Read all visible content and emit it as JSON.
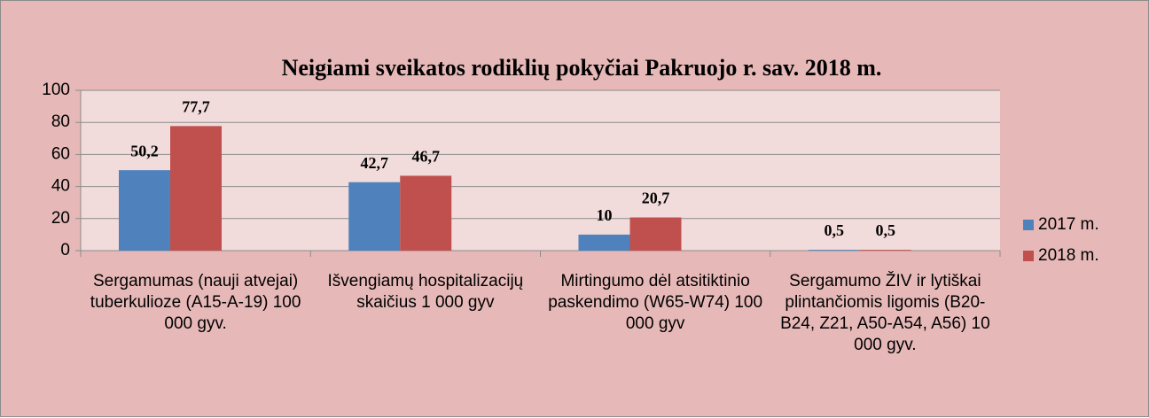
{
  "chart_data": {
    "type": "bar",
    "title": "Neigiami sveikatos rodiklių pokyčiai Pakruojo r. sav. 2018 m.",
    "categories": [
      "Sergamumas (nauji atvejai) tuberkulioze (A15-A-19) 100 000 gyv.",
      "Išvengiamų hospitalizacijų skaičius 1 000 gyv",
      "Mirtingumo dėl atsitiktinio paskendimo (W65-W74) 100 000 gyv",
      "Sergamumo ŽIV ir lytiškai plintančiomis ligomis (B20-B24, Z21, A50-A54, A56) 10 000 gyv."
    ],
    "series": [
      {
        "name": "2017 m.",
        "color": "#4f81bd",
        "values": [
          50.2,
          42.7,
          10,
          0.5
        ],
        "value_labels": [
          "50,2",
          "42,7",
          "10",
          "0,5"
        ]
      },
      {
        "name": "2018 m.",
        "color": "#c0504d",
        "values": [
          77.7,
          46.7,
          20.7,
          0.5
        ],
        "value_labels": [
          "77,7",
          "46,7",
          "20,7",
          "0,5"
        ]
      }
    ],
    "ylim": [
      0,
      100
    ],
    "yticks": [
      0,
      20,
      40,
      60,
      80,
      100
    ],
    "grid": true,
    "legend": "right"
  }
}
